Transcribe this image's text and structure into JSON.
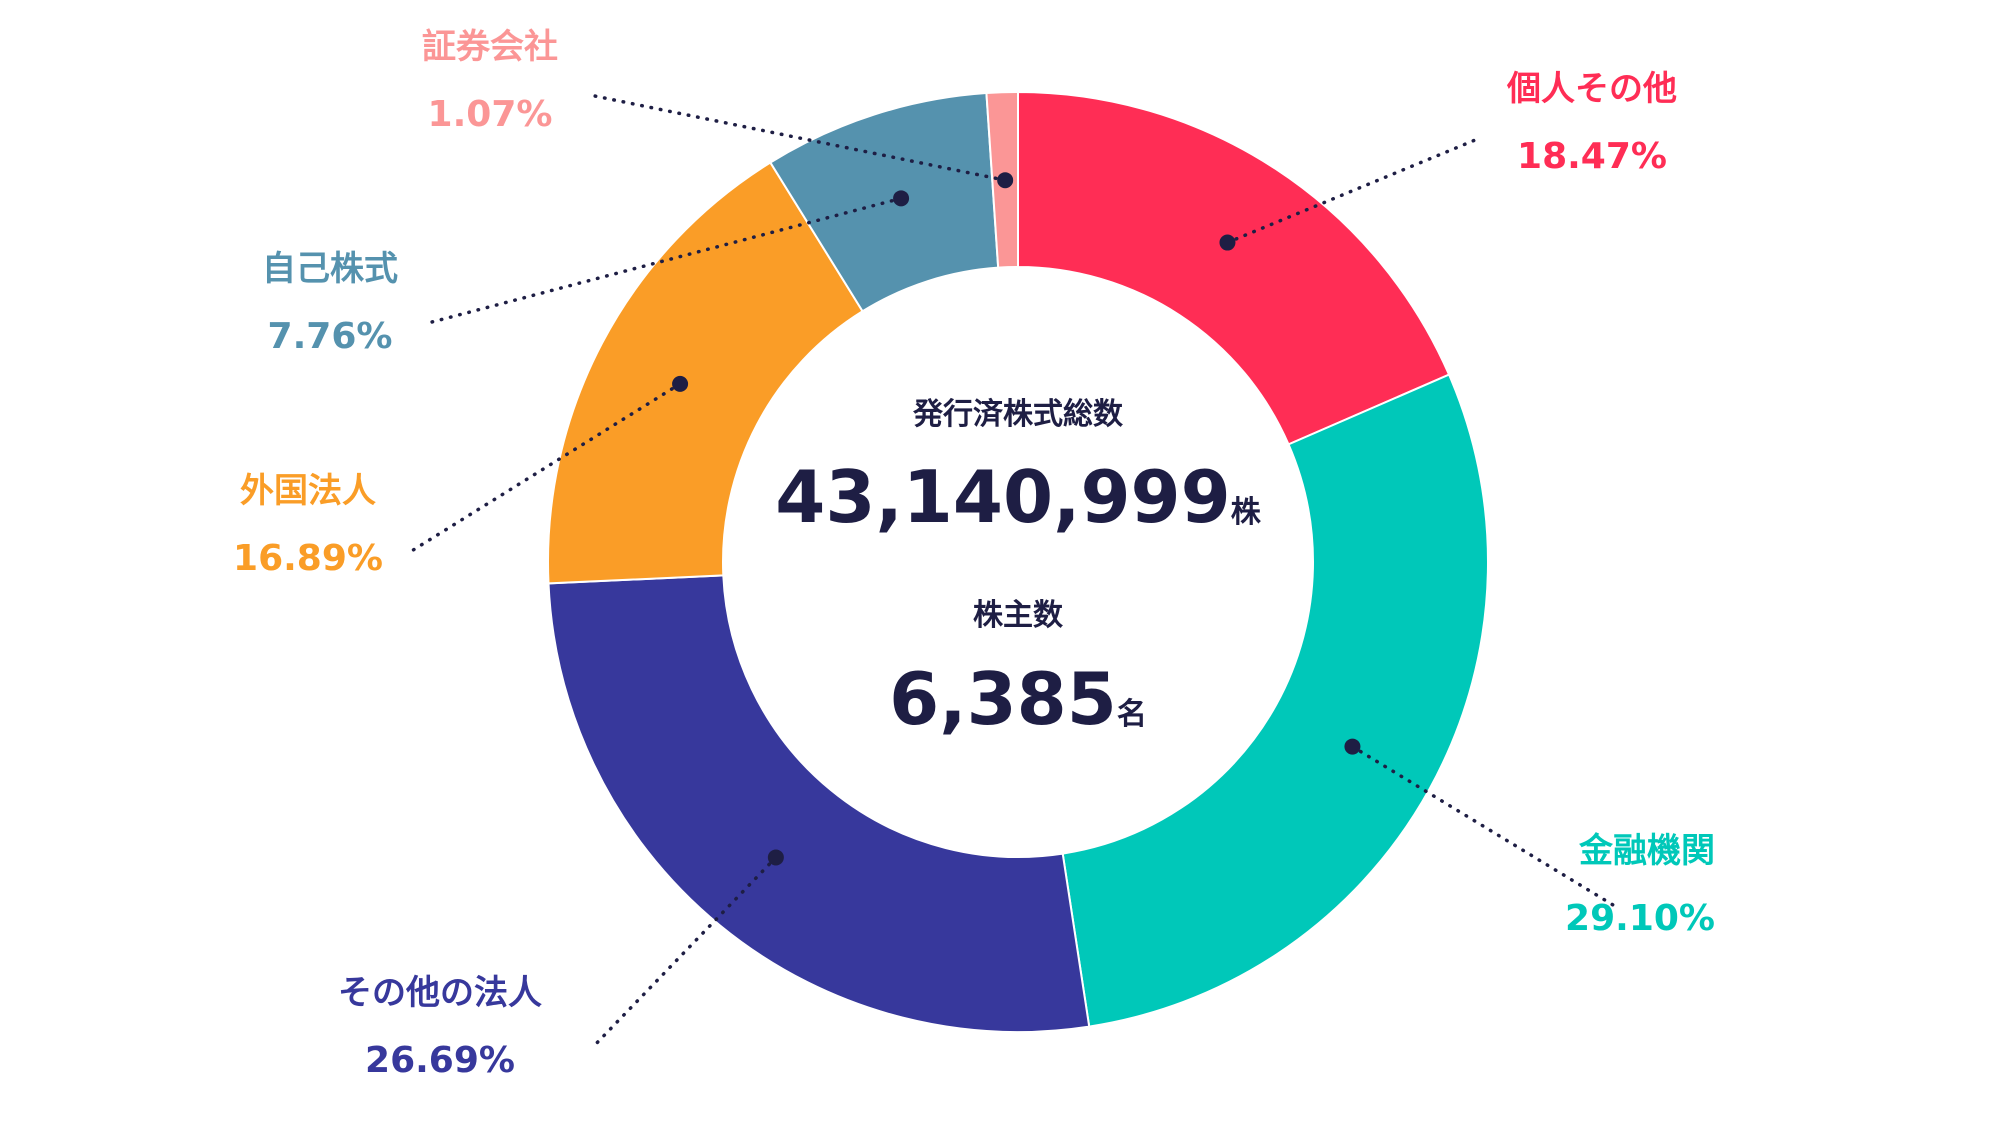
{
  "chart_data": {
    "type": "pie",
    "variant": "donut",
    "slices": [
      {
        "name": "個人その他",
        "value": 18.47,
        "label": "18.47%",
        "color": "#ff2d55"
      },
      {
        "name": "金融機関",
        "value": 29.1,
        "label": "29.10%",
        "color": "#00c8b9"
      },
      {
        "name": "その他の法人",
        "value": 26.69,
        "label": "26.69%",
        "color": "#37389c"
      },
      {
        "name": "外国法人",
        "value": 16.89,
        "label": "16.89%",
        "color": "#fa9d27"
      },
      {
        "name": "自己株式",
        "value": 7.76,
        "label": "7.76%",
        "color": "#5592ae"
      },
      {
        "name": "証券会社",
        "value": 1.07,
        "label": "1.07%",
        "color": "#fb9696"
      }
    ],
    "start_direction": "top",
    "order": "clockwise",
    "legend": "none",
    "leader_lines": "dotted"
  },
  "center": {
    "issued_shares_title": "発行済株式総数",
    "issued_shares_value": "43,140,999",
    "issued_shares_unit": "株",
    "shareholders_title": "株主数",
    "shareholders_value": "6,385",
    "shareholders_unit": "名",
    "text_color": "#1e1e44"
  }
}
